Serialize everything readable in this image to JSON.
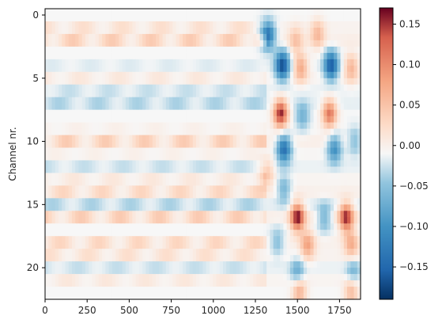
{
  "chart_data": {
    "type": "heatmap",
    "title": "",
    "xlabel": "",
    "ylabel": "Channel nr.",
    "colormap": "RdBu_r",
    "x_range": [
      0,
      1875
    ],
    "y_range": [
      -0.5,
      22.5
    ],
    "channels": 23,
    "x_ticks": [
      "0",
      "250",
      "500",
      "750",
      "1000",
      "1250",
      "1500",
      "1750"
    ],
    "x_tick_values": [
      0,
      250,
      500,
      750,
      1000,
      1250,
      1500,
      1750
    ],
    "y_ticks": [
      "0",
      "5",
      "10",
      "15",
      "20"
    ],
    "y_tick_values": [
      0,
      5,
      10,
      15,
      20
    ],
    "colorbar": {
      "range": [
        -0.19,
        0.17
      ],
      "ticks": [
        "0.15",
        "0.10",
        "0.05",
        "0.00",
        "−0.05",
        "−0.10",
        "−0.15"
      ],
      "tick_values": [
        0.15,
        0.1,
        0.05,
        0.0,
        -0.05,
        -0.1,
        -0.15
      ]
    },
    "onset_x": 1310,
    "baseline_rows": [
      0.0,
      0.03,
      0.05,
      0.0,
      -0.01,
      0.02,
      -0.02,
      -0.03,
      0.0,
      0.01,
      0.05,
      0.01,
      -0.02,
      0.02,
      0.04,
      -0.03,
      0.05,
      0.0,
      0.04,
      0.03,
      -0.02,
      0.02,
      0.0
    ],
    "blobs": [
      {
        "x": 1325,
        "y": 1.6,
        "value": -0.14
      },
      {
        "x": 1410,
        "y": 4.0,
        "value": -0.17
      },
      {
        "x": 1400,
        "y": 7.8,
        "value": 0.16
      },
      {
        "x": 1420,
        "y": 10.6,
        "value": -0.14
      },
      {
        "x": 1520,
        "y": 4.2,
        "value": 0.08
      },
      {
        "x": 1490,
        "y": 2.0,
        "value": 0.05
      },
      {
        "x": 1530,
        "y": 8.0,
        "value": -0.06
      },
      {
        "x": 1620,
        "y": 1.5,
        "value": 0.06
      },
      {
        "x": 1700,
        "y": 4.0,
        "value": -0.16
      },
      {
        "x": 1690,
        "y": 7.8,
        "value": 0.12
      },
      {
        "x": 1720,
        "y": 10.6,
        "value": -0.1
      },
      {
        "x": 1820,
        "y": 4.2,
        "value": 0.07
      },
      {
        "x": 1840,
        "y": 10.0,
        "value": -0.05
      },
      {
        "x": 1320,
        "y": 12.5,
        "value": 0.05
      },
      {
        "x": 1420,
        "y": 13.8,
        "value": -0.06
      },
      {
        "x": 1500,
        "y": 16.0,
        "value": 0.16
      },
      {
        "x": 1560,
        "y": 18.2,
        "value": 0.08
      },
      {
        "x": 1500,
        "y": 20.4,
        "value": -0.07
      },
      {
        "x": 1510,
        "y": 21.8,
        "value": 0.08
      },
      {
        "x": 1790,
        "y": 16.0,
        "value": 0.15
      },
      {
        "x": 1820,
        "y": 18.2,
        "value": 0.07
      },
      {
        "x": 1830,
        "y": 20.4,
        "value": -0.06
      },
      {
        "x": 1820,
        "y": 21.8,
        "value": 0.07
      },
      {
        "x": 1660,
        "y": 16.0,
        "value": -0.06
      },
      {
        "x": 1380,
        "y": 18.0,
        "value": -0.05
      }
    ]
  }
}
